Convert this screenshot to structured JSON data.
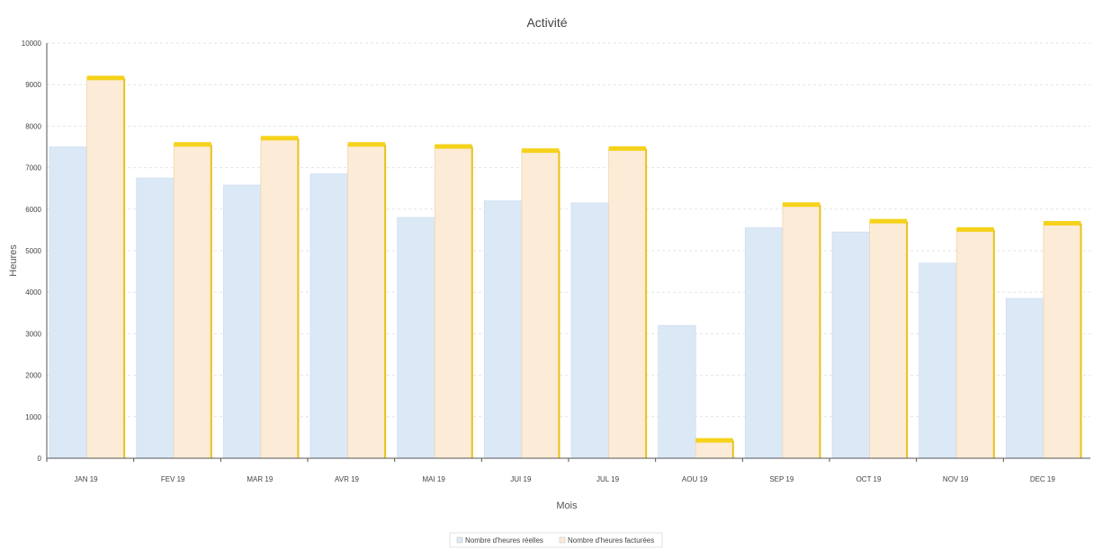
{
  "chart_data": {
    "type": "bar",
    "title": "Activité",
    "xlabel": "Mois",
    "ylabel": "Heures",
    "categories": [
      "JAN 19",
      "FEV 19",
      "MAR 19",
      "AVR 19",
      "MAI 19",
      "JUI 19",
      "JUL 19",
      "AOU 19",
      "SEP 19",
      "OCT 19",
      "NOV 19",
      "DEC 19"
    ],
    "series": [
      {
        "name": "Nombre d'heures réelles",
        "values": [
          7500,
          6750,
          6580,
          6850,
          5800,
          6200,
          6150,
          3200,
          5550,
          5450,
          4700,
          3850
        ],
        "color": "#dbe8f6"
      },
      {
        "name": "Nombre d'heures facturées",
        "values": [
          9150,
          7550,
          7700,
          7550,
          7500,
          7400,
          7450,
          420,
          6100,
          5700,
          5500,
          5650
        ],
        "color": "#fcebd6"
      }
    ],
    "ylim": [
      0,
      10000
    ],
    "yticks": [
      "0",
      "1000",
      "2000",
      "3000",
      "4000",
      "5000",
      "6000",
      "7000",
      "8000",
      "9000",
      "10000"
    ],
    "grid": true,
    "legend_position": "bottom"
  }
}
